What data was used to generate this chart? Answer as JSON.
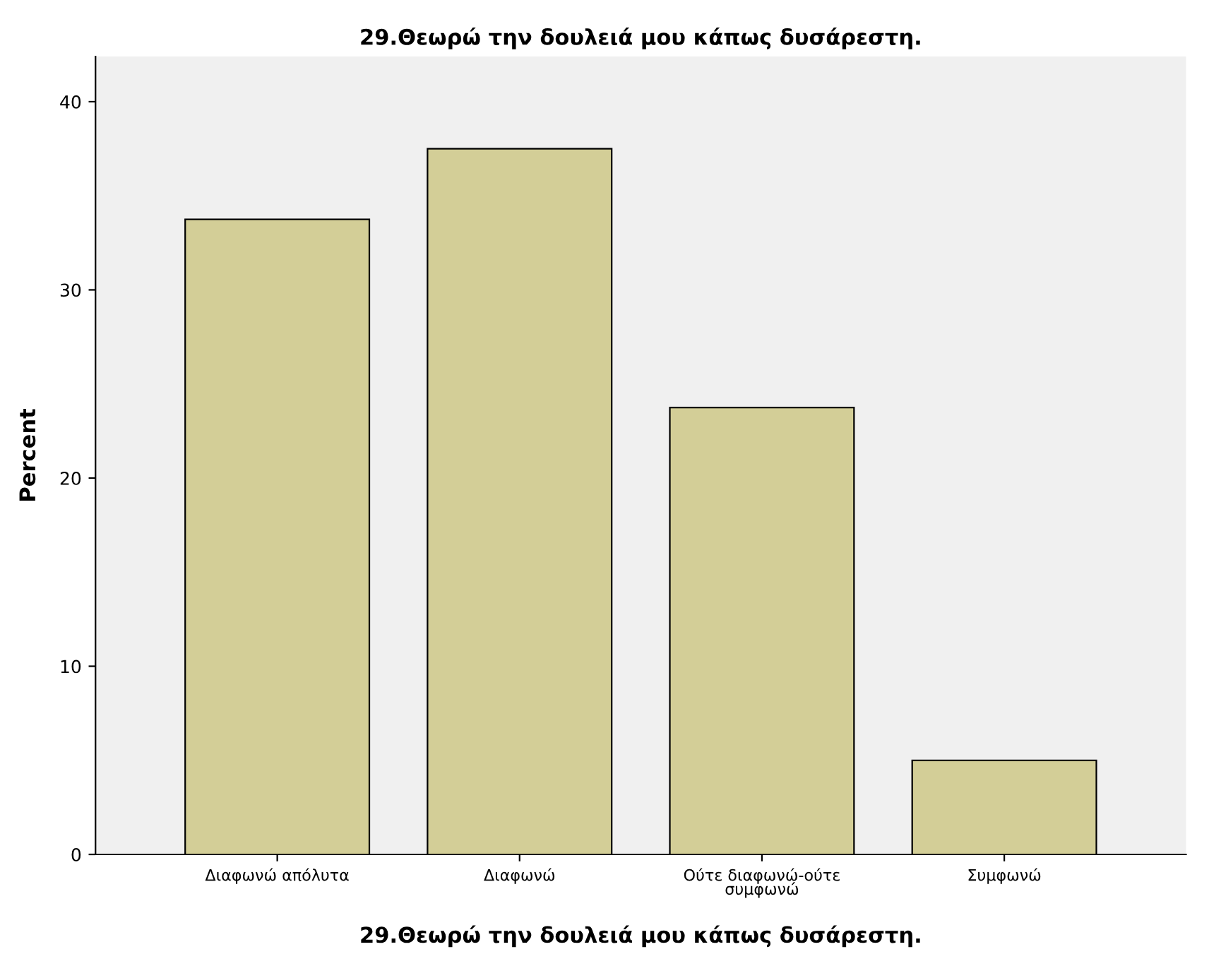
{
  "chart_data": {
    "type": "bar",
    "title": "29.Θεωρώ την δουλειά μου κάπως δυσάρεστη.",
    "xlabel": "29.Θεωρώ την δουλειά μου κάπως δυσάρεστη.",
    "ylabel": "Percent",
    "categories": [
      "Διαφωνώ απόλυτα",
      "Διαφωνώ",
      "Ούτε διαφωνώ-ούτε\nσυμφωνώ",
      "Συμφωνώ"
    ],
    "values": [
      33.75,
      37.5,
      23.75,
      5.0
    ],
    "color": "#d3ce97",
    "ylim": [
      0,
      42.4
    ],
    "yticks": [
      0,
      10,
      20,
      30,
      40
    ],
    "grid": false
  }
}
